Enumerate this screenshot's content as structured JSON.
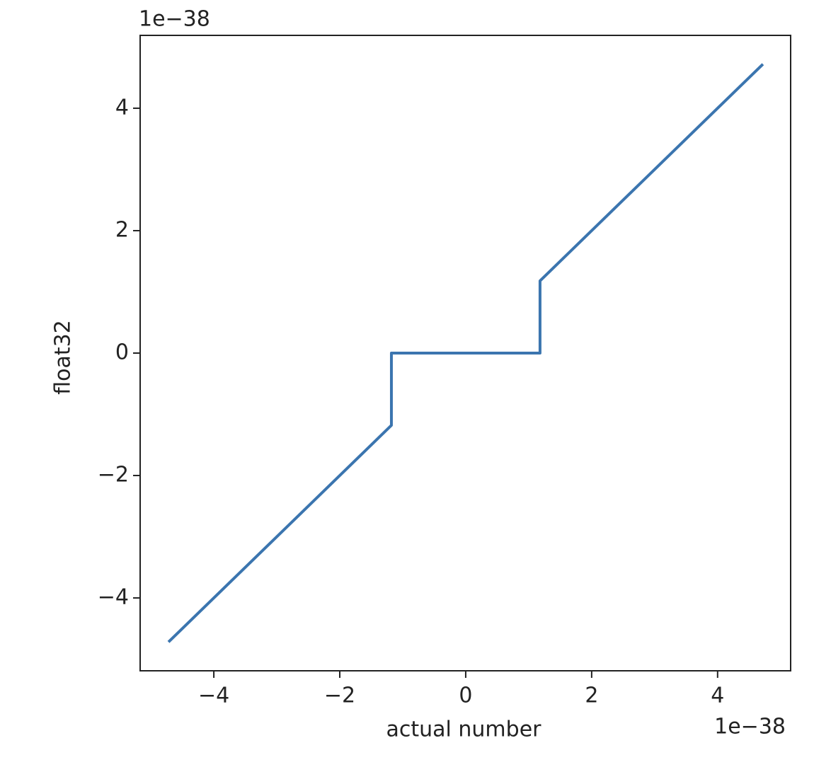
{
  "chart_data": {
    "type": "line",
    "x_label": "actual number",
    "y_label": "float32",
    "x_offset_text": "1e−38",
    "y_offset_text": "1e−38",
    "x": [
      -4.72,
      -1.18,
      -1.18,
      1.18,
      1.18,
      4.72
    ],
    "values": [
      -4.72,
      -1.18,
      0,
      0,
      1.18,
      4.72
    ],
    "color": "#3b75af",
    "xlim": [
      -5.17,
      5.16
    ],
    "ylim": [
      -5.19,
      5.19
    ],
    "xticks": [
      {
        "value": -4,
        "label": "−4"
      },
      {
        "value": -2,
        "label": "−2"
      },
      0,
      2,
      4
    ],
    "yticks": [
      {
        "value": -4,
        "label": "−4"
      },
      {
        "value": -2,
        "label": "−2"
      },
      0,
      2,
      4
    ],
    "grid": false
  }
}
